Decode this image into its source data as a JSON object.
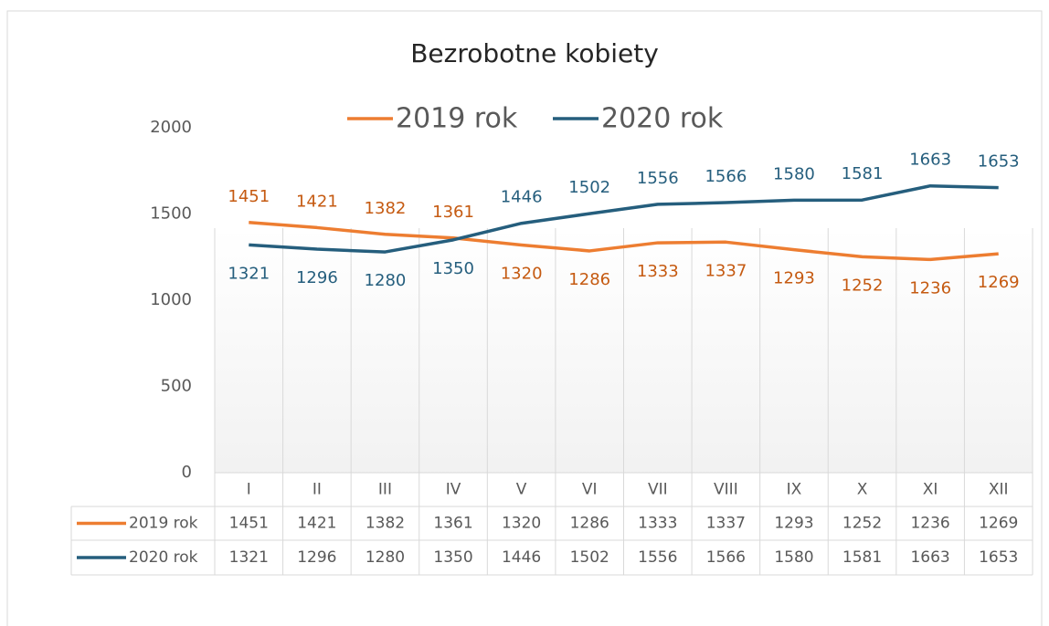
{
  "chart_data": {
    "type": "line",
    "title": "Bezrobotne kobiety",
    "categories": [
      "I",
      "II",
      "III",
      "IV",
      "V",
      "VI",
      "VII",
      "VIII",
      "IX",
      "X",
      "XI",
      "XII"
    ],
    "series": [
      {
        "name": "2019 rok",
        "color": "#ed7d31",
        "values": [
          1451,
          1421,
          1382,
          1361,
          1320,
          1286,
          1333,
          1337,
          1293,
          1252,
          1236,
          1269
        ]
      },
      {
        "name": "2020 rok",
        "color": "#255e7d",
        "values": [
          1321,
          1296,
          1280,
          1350,
          1446,
          1502,
          1556,
          1566,
          1580,
          1581,
          1663,
          1653
        ]
      }
    ],
    "ylim": [
      0,
      2000
    ],
    "yticks": [
      0,
      500,
      1000,
      1500,
      2000
    ]
  }
}
